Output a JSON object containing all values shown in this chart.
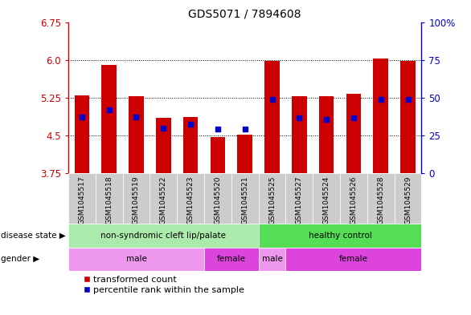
{
  "title": "GDS5071 / 7894608",
  "samples": [
    "GSM1045517",
    "GSM1045518",
    "GSM1045519",
    "GSM1045522",
    "GSM1045523",
    "GSM1045520",
    "GSM1045521",
    "GSM1045525",
    "GSM1045527",
    "GSM1045524",
    "GSM1045526",
    "GSM1045528",
    "GSM1045529"
  ],
  "bar_values": [
    5.3,
    5.9,
    5.28,
    4.85,
    4.87,
    4.47,
    4.51,
    5.98,
    5.28,
    5.28,
    5.32,
    6.02,
    5.98
  ],
  "percentile_values": [
    4.86,
    5.01,
    4.86,
    4.65,
    4.72,
    4.62,
    4.63,
    5.22,
    4.85,
    4.82,
    4.85,
    5.22,
    5.22
  ],
  "bar_color": "#cc0000",
  "percentile_color": "#0000cc",
  "ymin": 3.75,
  "ymax": 6.75,
  "yticks_left": [
    3.75,
    4.5,
    5.25,
    6.0,
    6.75
  ],
  "yticks_right_vals": [
    3.75,
    4.5,
    5.25,
    6.0,
    6.75
  ],
  "yticks_right_labels": [
    "0",
    "25",
    "50",
    "75",
    "100%"
  ],
  "grid_lines": [
    4.5,
    5.25,
    6.0
  ],
  "disease_state_groups": [
    {
      "label": "non-syndromic cleft lip/palate",
      "start": 0,
      "end": 7,
      "color": "#aaeaaa"
    },
    {
      "label": "healthy control",
      "start": 7,
      "end": 13,
      "color": "#55dd55"
    }
  ],
  "gender_groups": [
    {
      "label": "male",
      "start": 0,
      "end": 5,
      "color": "#ee99ee"
    },
    {
      "label": "female",
      "start": 5,
      "end": 7,
      "color": "#dd44dd"
    },
    {
      "label": "male",
      "start": 7,
      "end": 8,
      "color": "#ee99ee"
    },
    {
      "label": "female",
      "start": 8,
      "end": 13,
      "color": "#dd44dd"
    }
  ],
  "legend_items": [
    {
      "label": "transformed count",
      "color": "#cc0000"
    },
    {
      "label": "percentile rank within the sample",
      "color": "#0000cc"
    }
  ],
  "bar_bottom": 3.75,
  "bar_width": 0.55,
  "percentile_marker_size": 5,
  "sample_bg_even": "#cccccc",
  "sample_bg_odd": "#bbbbbb",
  "left_label_disease": "disease state ▶",
  "left_label_gender": "gender ▶"
}
